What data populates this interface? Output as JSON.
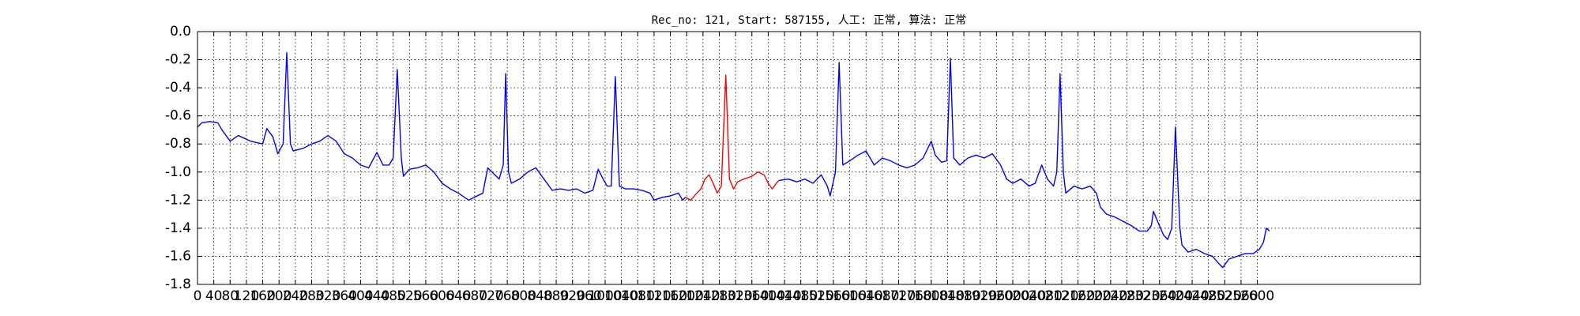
{
  "chart_data": {
    "type": "line",
    "title": "Rec_no: 121, Start: 587155, 人工: 正常, 算法: 正常",
    "xlim": [
      0,
      3000
    ],
    "ylim": [
      -1.8,
      0
    ],
    "xticks": [
      0,
      40,
      80,
      120,
      160,
      200,
      240,
      280,
      320,
      360,
      400,
      440,
      480,
      520,
      560,
      600,
      640,
      680,
      720,
      760,
      800,
      840,
      880,
      920,
      960,
      1000,
      1040,
      1080,
      1120,
      1160,
      1200,
      1240,
      1280,
      1320,
      1360,
      1400,
      1440,
      1480,
      1520,
      1560,
      1600,
      1640,
      1680,
      1720,
      1760,
      1800,
      1840,
      1880,
      1920,
      1960,
      2000,
      2040,
      2080,
      2120,
      2160,
      2200,
      2240,
      2280,
      2320,
      2360,
      2400,
      2440,
      2480,
      2520,
      2560,
      2600
    ],
    "yticks": [
      {
        "value": 0,
        "label": "0.0"
      },
      -0.2,
      -0.4,
      -0.6,
      -0.8,
      {
        "value": -1,
        "label": "-1.0"
      },
      -1.2,
      -1.4,
      -1.6,
      -1.8
    ],
    "grid": true,
    "series": [
      {
        "color": "#0000ff",
        "x": [
          0,
          10,
          30,
          50,
          60,
          80,
          100,
          130,
          160,
          170,
          185,
          197,
          210,
          219,
          228,
          235,
          260,
          280,
          300,
          320,
          340,
          360,
          380,
          400,
          420,
          440,
          455,
          470,
          480,
          490,
          500,
          505,
          520,
          540,
          560,
          580,
          600,
          620,
          640,
          665,
          700,
          712,
          740,
          750,
          756,
          763,
          770,
          790,
          810,
          830,
          850,
          870,
          890,
          910,
          930,
          950,
          970,
          983,
          995,
          1005,
          1015,
          1025,
          1035,
          1050,
          1070,
          1090,
          1110,
          1120,
          1140,
          1160,
          1180,
          1190,
          1197,
          1300,
          1426,
          1450,
          1470,
          1490,
          1510,
          1530,
          1545,
          1552,
          1565,
          1574,
          1583,
          1600,
          1620,
          1640,
          1660,
          1680,
          1700,
          1720,
          1740,
          1760,
          1780,
          1800,
          1810,
          1825,
          1838,
          1847,
          1855,
          1870,
          1890,
          1910,
          1930,
          1950,
          1970,
          1985,
          2000,
          2020,
          2040,
          2055,
          2071,
          2085,
          2100,
          2108,
          2116,
          2124,
          2130,
          2150,
          2170,
          2190,
          2205,
          2215,
          2230,
          2250,
          2270,
          2290,
          2310,
          2330,
          2340,
          2345,
          2355,
          2370,
          2380,
          2390,
          2399,
          2410,
          2415,
          2430,
          2450,
          2470,
          2490,
          2505,
          2515,
          2530,
          2550,
          2570,
          2590,
          2605,
          2615,
          2622,
          2630
        ],
        "values": [
          -0.68,
          -0.65,
          -0.64,
          -0.65,
          -0.7,
          -0.78,
          -0.74,
          -0.78,
          -0.8,
          -0.69,
          -0.75,
          -0.87,
          -0.8,
          -0.15,
          -0.8,
          -0.85,
          -0.83,
          -0.8,
          -0.78,
          -0.74,
          -0.78,
          -0.87,
          -0.9,
          -0.95,
          -0.97,
          -0.86,
          -0.95,
          -0.95,
          -0.9,
          -0.27,
          -0.9,
          -1.03,
          -0.98,
          -0.97,
          -0.95,
          -1.0,
          -1.08,
          -1.12,
          -1.15,
          -1.2,
          -1.15,
          -0.97,
          -1.05,
          -0.95,
          -0.3,
          -1.0,
          -1.08,
          -1.05,
          -1.0,
          -0.97,
          -1.05,
          -1.13,
          -1.12,
          -1.13,
          -1.12,
          -1.15,
          -1.13,
          -0.98,
          -1.05,
          -1.1,
          -1.1,
          -0.32,
          -1.1,
          -1.12,
          -1.12,
          -1.13,
          -1.15,
          -1.2,
          -1.18,
          -1.17,
          -1.15,
          -1.2,
          -1.18,
          null,
          -1.06,
          -1.05,
          -1.07,
          -1.05,
          -1.08,
          -1.02,
          -1.1,
          -1.17,
          -1.0,
          -0.22,
          -0.95,
          -0.92,
          -0.88,
          -0.85,
          -0.95,
          -0.9,
          -0.92,
          -0.95,
          -0.97,
          -0.95,
          -0.9,
          -0.78,
          -0.88,
          -0.93,
          -0.92,
          -0.19,
          -0.9,
          -0.95,
          -0.9,
          -0.88,
          -0.9,
          -0.87,
          -0.95,
          -1.05,
          -1.08,
          -1.05,
          -1.1,
          -1.08,
          -0.95,
          -1.05,
          -1.1,
          -1.0,
          -0.3,
          -1.0,
          -1.15,
          -1.1,
          -1.12,
          -1.1,
          -1.15,
          -1.25,
          -1.3,
          -1.32,
          -1.35,
          -1.38,
          -1.42,
          -1.42,
          -1.38,
          -1.28,
          -1.35,
          -1.45,
          -1.48,
          -1.4,
          -0.68,
          -1.4,
          -1.52,
          -1.57,
          -1.55,
          -1.58,
          -1.6,
          -1.65,
          -1.68,
          -1.62,
          -1.6,
          -1.58,
          -1.58,
          -1.55,
          -1.5,
          -1.4,
          -1.42
        ]
      },
      {
        "color": "#ff0000",
        "x": [
          1197,
          1210,
          1225,
          1235,
          1245,
          1255,
          1265,
          1275,
          1285,
          1296,
          1305,
          1315,
          1325,
          1340,
          1360,
          1375,
          1390,
          1400,
          1410,
          1420,
          1426
        ],
        "values": [
          -1.18,
          -1.2,
          -1.15,
          -1.12,
          -1.05,
          -1.02,
          -1.08,
          -1.15,
          -1.1,
          -0.31,
          -1.05,
          -1.12,
          -1.07,
          -1.05,
          -1.03,
          -1.0,
          -1.02,
          -1.08,
          -1.12,
          -1.08,
          -1.06
        ]
      }
    ]
  }
}
